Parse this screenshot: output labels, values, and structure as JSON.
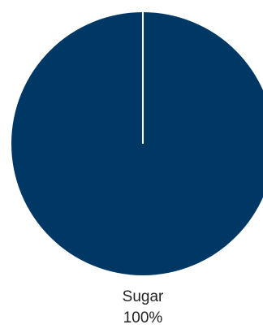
{
  "chart_data": {
    "type": "pie",
    "slices": [
      {
        "label": "Sugar",
        "value": 100,
        "percent_label": "100%",
        "color": "#003865"
      }
    ],
    "separator_color": "#ffffff"
  }
}
